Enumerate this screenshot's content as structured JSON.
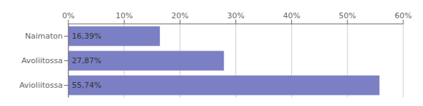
{
  "chart_data": {
    "type": "bar",
    "orientation": "horizontal",
    "categories": [
      "Naimaton",
      "Avoliitossa",
      "Avioliitossa"
    ],
    "values": [
      16.39,
      27.87,
      55.74
    ],
    "value_labels": [
      "16,39%",
      "27,87%",
      "55,74%"
    ],
    "data_labels": true,
    "color": "#7b7fc4",
    "xlim": [
      0,
      60
    ],
    "xticks": [
      {
        "value": 0,
        "label": "0%"
      },
      {
        "value": 10,
        "label": "10%"
      },
      {
        "value": 20,
        "label": "20%"
      },
      {
        "value": 30,
        "label": "30%"
      },
      {
        "value": 40,
        "label": "40%"
      },
      {
        "value": 50,
        "label": "50%"
      },
      {
        "value": 60,
        "label": "60%"
      }
    ],
    "grid": true
  }
}
